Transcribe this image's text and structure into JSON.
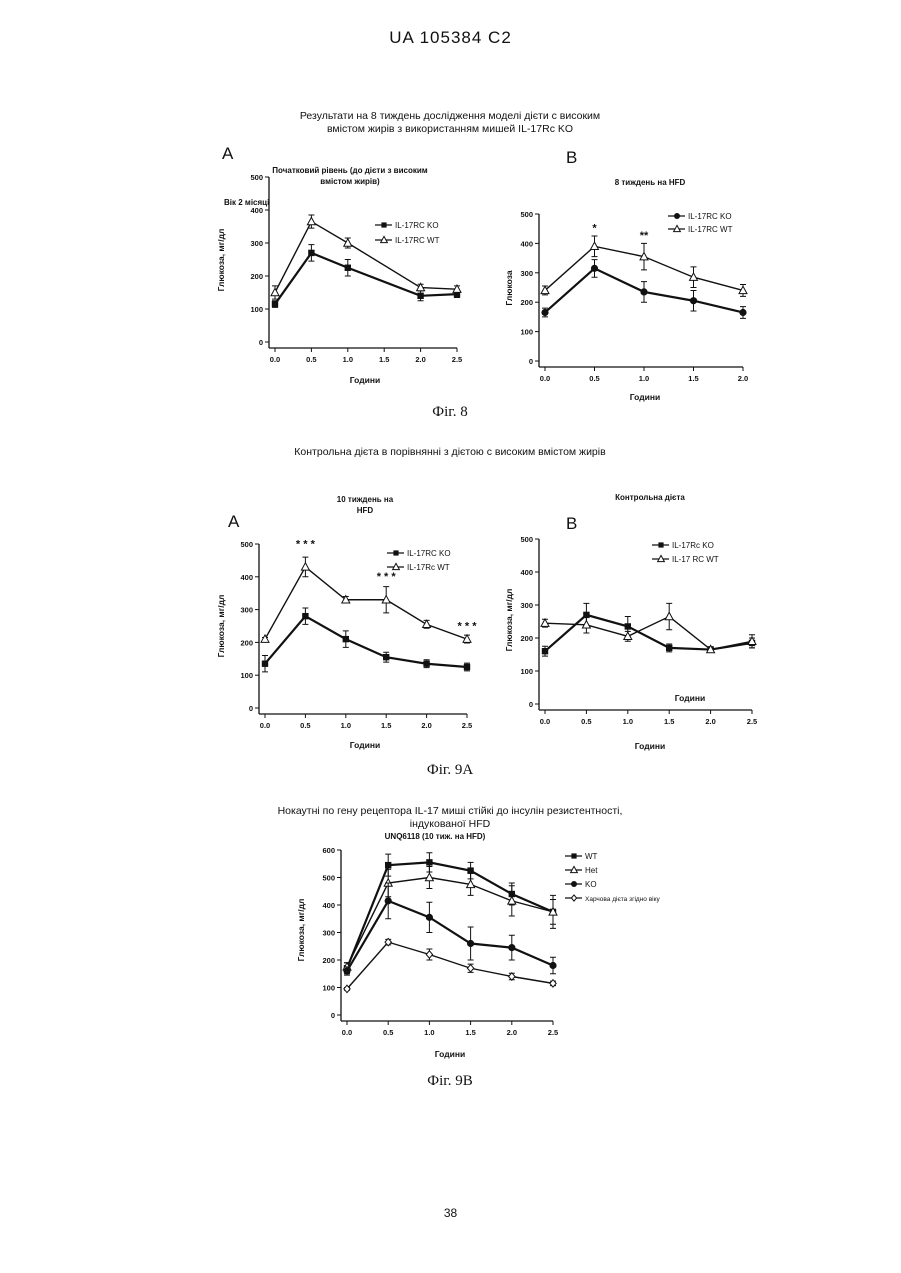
{
  "header": "UA   105384   C2",
  "page_number": "38",
  "fig8": {
    "caption_lines": [
      "Результати на 8 тиждень дослідження моделі дієти с високим",
      "вмістом жирів з використанням мишей IL-17Rc KO"
    ],
    "label": "Фіг. 8",
    "panel_a_letter": "A",
    "panel_b_letter": "B"
  },
  "fig9a": {
    "caption": "Контрольна дієта в порівнянні з дієтою с високим вмістом жирів",
    "label": "Фіг. 9A",
    "panel_a_letter": "A",
    "panel_b_letter": "B"
  },
  "fig9b": {
    "caption_lines": [
      "Нокаутні по гену рецептора IL-17 миші стійкі до інсулін резистентності,",
      "індукованої HFD"
    ],
    "label": "Фіг. 9B"
  },
  "chart_data": [
    {
      "id": "c8a",
      "type": "line",
      "title": "Початковий рівень (до дієти з високим вмістом жирів)",
      "title_lines": [
        "Початковий рівень (до дієти з високим",
        "вмістом жирів)"
      ],
      "subtitle": "Вік 2 місяці",
      "xlabel": "Години",
      "ylabel": "Глюкоза, мг/дл",
      "xlim": [
        0,
        2.5
      ],
      "ylim": [
        0,
        500
      ],
      "xticks": [
        "0.0",
        "0.5",
        "1.0",
        "1.5",
        "2.0",
        "2.5"
      ],
      "yticks": [
        "0",
        "100",
        "200",
        "300",
        "400",
        "500"
      ],
      "legend": "top-right",
      "series": [
        {
          "name": "IL-17RC KO",
          "marker": "square",
          "x": [
            0,
            0.5,
            1.0,
            2.0,
            2.5
          ],
          "y": [
            115,
            270,
            225,
            140,
            145
          ],
          "err": [
            10,
            25,
            25,
            15,
            10
          ]
        },
        {
          "name": "IL-17RC WT",
          "marker": "triangle",
          "x": [
            0,
            0.5,
            1.0,
            2.0,
            2.5
          ],
          "y": [
            150,
            365,
            300,
            165,
            160
          ],
          "err": [
            20,
            20,
            15,
            10,
            10
          ]
        }
      ],
      "annotations": []
    },
    {
      "id": "c8b",
      "type": "line",
      "title": "8 тиждень на HFD",
      "xlabel": "Години",
      "ylabel": "Глюкоза",
      "xlim": [
        0,
        2.0
      ],
      "ylim": [
        0,
        500
      ],
      "xticks": [
        "0.0",
        "0.5",
        "1.0",
        "1.5",
        "2.0"
      ],
      "yticks": [
        "0",
        "100",
        "200",
        "300",
        "400",
        "500"
      ],
      "legend": "top-right",
      "series": [
        {
          "name": "IL-17RC KO",
          "marker": "circle",
          "x": [
            0,
            0.5,
            1.0,
            1.5,
            2.0
          ],
          "y": [
            165,
            315,
            235,
            205,
            165
          ],
          "err": [
            15,
            30,
            35,
            35,
            20
          ]
        },
        {
          "name": "IL-17RC WT",
          "marker": "triangle",
          "x": [
            0,
            0.5,
            1.0,
            1.5,
            2.0
          ],
          "y": [
            240,
            390,
            355,
            285,
            240
          ],
          "err": [
            15,
            35,
            45,
            35,
            20
          ]
        }
      ],
      "annotations": [
        {
          "x": 0.5,
          "y": 440,
          "text": "*"
        },
        {
          "x": 1.0,
          "y": 415,
          "text": "**"
        }
      ]
    },
    {
      "id": "c9aa",
      "type": "line",
      "title": "10 тиждень на HFD",
      "title_lines": [
        "10 тиждень на",
        "HFD"
      ],
      "xlabel": "Години",
      "ylabel": "Глюкоза, мг/дл",
      "xlim": [
        0,
        2.5
      ],
      "ylim": [
        0,
        500
      ],
      "xticks": [
        "0.0",
        "0.5",
        "1.0",
        "1.5",
        "2.0",
        "2.5"
      ],
      "yticks": [
        "0",
        "100",
        "200",
        "300",
        "400",
        "500"
      ],
      "legend": "top-right",
      "series": [
        {
          "name": "IL-17RC KO",
          "marker": "square",
          "x": [
            0,
            0.5,
            1.0,
            1.5,
            2.0,
            2.5
          ],
          "y": [
            135,
            280,
            210,
            155,
            135,
            125
          ],
          "err": [
            25,
            25,
            25,
            15,
            12,
            12
          ]
        },
        {
          "name": "IL-17Rc WT",
          "marker": "triangle",
          "x": [
            0,
            0.5,
            1.0,
            1.5,
            2.0,
            2.5
          ],
          "y": [
            210,
            430,
            330,
            330,
            255,
            210
          ],
          "err": [
            5,
            30,
            10,
            40,
            12,
            12
          ]
        }
      ],
      "annotations": [
        {
          "x": 0.5,
          "y": 490,
          "text": "* * *"
        },
        {
          "x": 1.5,
          "y": 390,
          "text": "* * *"
        },
        {
          "x": 2.5,
          "y": 240,
          "text": "* * *"
        }
      ]
    },
    {
      "id": "c9ab",
      "type": "line",
      "title": "Контрольна дієта",
      "xlabel": "Години",
      "ylabel": "Глюкоза, мг/дл",
      "inner_label": "Години",
      "xlim": [
        0,
        2.5
      ],
      "ylim": [
        0,
        500
      ],
      "xticks": [
        "0.0",
        "0.5",
        "1.0",
        "1.5",
        "2.0",
        "2.5"
      ],
      "yticks": [
        "0",
        "100",
        "200",
        "300",
        "400",
        "500"
      ],
      "legend": "top-right",
      "series": [
        {
          "name": "IL-17Rc KO",
          "marker": "square",
          "x": [
            0,
            0.5,
            1.0,
            1.5,
            2.0,
            2.5
          ],
          "y": [
            160,
            270,
            235,
            170,
            165,
            185
          ],
          "err": [
            15,
            35,
            30,
            12,
            8,
            15
          ]
        },
        {
          "name": "IL-17 RC WT",
          "marker": "triangle",
          "x": [
            0,
            0.5,
            1.0,
            1.5,
            2.0,
            2.5
          ],
          "y": [
            245,
            240,
            205,
            265,
            165,
            190
          ],
          "err": [
            12,
            25,
            15,
            40,
            8,
            20
          ]
        }
      ],
      "annotations": []
    },
    {
      "id": "c9b",
      "type": "line",
      "title": "UNQ6118 (10 тиж. на HFD)",
      "xlabel": "Години",
      "ylabel": "Глюкоза, мг/дл",
      "xlim": [
        0,
        2.5
      ],
      "ylim": [
        0,
        600
      ],
      "xticks": [
        "0.0",
        "0.5",
        "1.0",
        "1.5",
        "2.0",
        "2.5"
      ],
      "yticks": [
        "0",
        "100",
        "200",
        "300",
        "400",
        "500",
        "600"
      ],
      "legend": "right",
      "series": [
        {
          "name": "WT",
          "marker": "square",
          "x": [
            0,
            0.5,
            1.0,
            1.5,
            2.0,
            2.5
          ],
          "y": [
            170,
            545,
            555,
            525,
            440,
            375
          ],
          "err": [
            20,
            40,
            35,
            30,
            40,
            60
          ]
        },
        {
          "name": "Het",
          "marker": "triangle",
          "x": [
            0,
            0.5,
            1.0,
            1.5,
            2.0,
            2.5
          ],
          "y": [
            175,
            480,
            500,
            475,
            415,
            375
          ],
          "err": [
            15,
            50,
            40,
            40,
            55,
            45
          ]
        },
        {
          "name": "KO",
          "marker": "circle",
          "x": [
            0,
            0.5,
            1.0,
            1.5,
            2.0,
            2.5
          ],
          "y": [
            160,
            415,
            355,
            260,
            245,
            180
          ],
          "err": [
            15,
            65,
            55,
            60,
            45,
            30
          ]
        },
        {
          "name": "Харчова дієта згідно віку",
          "marker": "diamond",
          "x": [
            0,
            0.5,
            1.0,
            1.5,
            2.0,
            2.5
          ],
          "y": [
            95,
            265,
            220,
            170,
            140,
            115
          ],
          "err": [
            5,
            10,
            20,
            15,
            12,
            8
          ]
        }
      ],
      "annotations": []
    }
  ]
}
